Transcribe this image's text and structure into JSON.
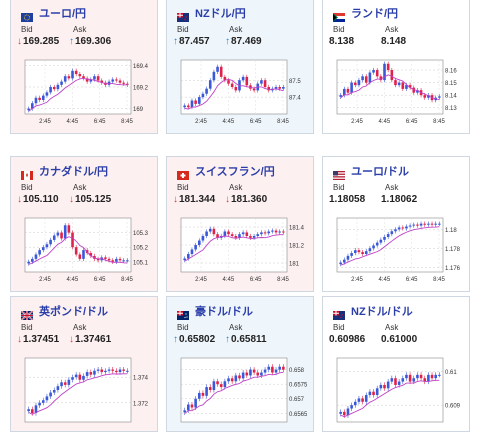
{
  "cards": [
    {
      "title": "ユーロ/円",
      "flag": "eu",
      "tone": "down",
      "bid_label": "Bid",
      "ask_label": "Ask",
      "bid": "169.285",
      "ask": "169.306",
      "bid_dir": "down",
      "ask_dir": "up",
      "yticks": [
        "169.4",
        "169.2",
        "169"
      ],
      "xticks": [
        "2:45",
        "4:45",
        "6:45",
        "8:45"
      ],
      "ylim": [
        168.95,
        169.45
      ],
      "closes": [
        169.0,
        169.05,
        169.1,
        169.08,
        169.12,
        169.15,
        169.2,
        169.18,
        169.22,
        169.25,
        169.3,
        169.28,
        169.35,
        169.32,
        169.3,
        169.28,
        169.25,
        169.27,
        169.3,
        169.26,
        169.24,
        169.22,
        169.25,
        169.27,
        169.26,
        169.24,
        169.23,
        169.22
      ]
    },
    {
      "title": "NZドル/円",
      "flag": "nz",
      "tone": "up",
      "bid_label": "Bid",
      "ask_label": "Ask",
      "bid": "87.457",
      "ask": "87.469",
      "bid_dir": "up",
      "ask_dir": "up",
      "yticks": [
        "87.5",
        "87.4"
      ],
      "xticks": [
        "2:45",
        "4:45",
        "6:45",
        "8:45"
      ],
      "ylim": [
        87.3,
        87.62
      ],
      "closes": [
        87.35,
        87.34,
        87.38,
        87.36,
        87.4,
        87.42,
        87.45,
        87.5,
        87.55,
        87.58,
        87.52,
        87.5,
        87.48,
        87.46,
        87.44,
        87.5,
        87.52,
        87.47,
        87.45,
        87.44,
        87.48,
        87.5,
        87.46,
        87.44,
        87.45,
        87.46,
        87.45,
        87.46
      ]
    },
    {
      "title": "ランド/円",
      "flag": "za",
      "tone": "neutral",
      "bid_label": "Bid",
      "ask_label": "Ask",
      "bid": "8.138",
      "ask": "8.148",
      "bid_dir": "",
      "ask_dir": "",
      "yticks": [
        "8.16",
        "8.15",
        "8.14",
        "8.13"
      ],
      "xticks": [
        "2:45",
        "4:45",
        "6:45",
        "8:45"
      ],
      "ylim": [
        8.125,
        8.168
      ],
      "closes": [
        8.14,
        8.145,
        8.142,
        8.15,
        8.148,
        8.152,
        8.155,
        8.15,
        8.158,
        8.16,
        8.155,
        8.152,
        8.165,
        8.16,
        8.152,
        8.148,
        8.15,
        8.145,
        8.148,
        8.146,
        8.142,
        8.144,
        8.14,
        8.138,
        8.14,
        8.136,
        8.138,
        8.139
      ]
    },
    {
      "title": "カナダドル/円",
      "flag": "ca",
      "tone": "down",
      "bid_label": "Bid",
      "ask_label": "Ask",
      "bid": "105.110",
      "ask": "105.125",
      "bid_dir": "down",
      "ask_dir": "down",
      "yticks": [
        "105.3",
        "105.2",
        "105.1"
      ],
      "xticks": [
        "2:45",
        "4:45",
        "6:45",
        "8:45"
      ],
      "ylim": [
        105.03,
        105.4
      ],
      "closes": [
        105.1,
        105.12,
        105.15,
        105.18,
        105.2,
        105.22,
        105.25,
        105.28,
        105.3,
        105.26,
        105.35,
        105.3,
        105.2,
        105.15,
        105.12,
        105.18,
        105.16,
        105.14,
        105.12,
        105.11,
        105.13,
        105.12,
        105.11,
        105.1,
        105.12,
        105.11,
        105.11,
        105.11
      ]
    },
    {
      "title": "スイスフラン/円",
      "flag": "ch",
      "tone": "down",
      "bid_label": "Bid",
      "ask_label": "Ask",
      "bid": "181.344",
      "ask": "181.360",
      "bid_dir": "down",
      "ask_dir": "down",
      "yticks": [
        "181.4",
        "181.2",
        "181"
      ],
      "xticks": [
        "2:45",
        "4:45",
        "6:45",
        "8:45"
      ],
      "ylim": [
        180.9,
        181.5
      ],
      "closes": [
        181.05,
        181.1,
        181.15,
        181.2,
        181.25,
        181.3,
        181.35,
        181.38,
        181.32,
        181.28,
        181.3,
        181.35,
        181.32,
        181.3,
        181.28,
        181.32,
        181.34,
        181.3,
        181.28,
        181.3,
        181.32,
        181.34,
        181.33,
        181.35,
        181.36,
        181.34,
        181.35,
        181.34
      ]
    },
    {
      "title": "ユーロ/ドル",
      "flag": "us",
      "tone": "neutral",
      "bid_label": "Bid",
      "ask_label": "Ask",
      "bid": "1.18058",
      "ask": "1.18062",
      "bid_dir": "",
      "ask_dir": "",
      "yticks": [
        "1.18",
        "1.178",
        "1.176"
      ],
      "xticks": [
        "2:45",
        "4:45",
        "6:45",
        "8:45"
      ],
      "ylim": [
        1.1755,
        1.1812
      ],
      "closes": [
        1.1765,
        1.1768,
        1.1772,
        1.1775,
        1.1778,
        1.1776,
        1.1774,
        1.1777,
        1.178,
        1.1783,
        1.1786,
        1.1789,
        1.1792,
        1.1795,
        1.1798,
        1.18,
        1.1802,
        1.1801,
        1.1803,
        1.1804,
        1.1805,
        1.1804,
        1.1806,
        1.1805,
        1.1806,
        1.1805,
        1.1806,
        1.1806
      ]
    },
    {
      "title": "英ポンド/ドル",
      "flag": "uk",
      "tone": "down",
      "bid_label": "Bid",
      "ask_label": "Ask",
      "bid": "1.37451",
      "ask": "1.37461",
      "bid_dir": "down",
      "ask_dir": "down",
      "yticks": [
        "1.374",
        "1.372"
      ],
      "xticks": [],
      "ylim": [
        1.3705,
        1.3755
      ],
      "closes": [
        1.3715,
        1.3712,
        1.3718,
        1.372,
        1.3722,
        1.3725,
        1.3728,
        1.373,
        1.3733,
        1.3736,
        1.3734,
        1.3738,
        1.374,
        1.3742,
        1.3738,
        1.3741,
        1.3744,
        1.3742,
        1.3745,
        1.3746,
        1.3744,
        1.3745,
        1.3746,
        1.3745,
        1.3744,
        1.3746,
        1.3745,
        1.3745
      ]
    },
    {
      "title": "豪ドル/ドル",
      "flag": "au",
      "tone": "up",
      "bid_label": "Bid",
      "ask_label": "Ask",
      "bid": "0.65802",
      "ask": "0.65811",
      "bid_dir": "up",
      "ask_dir": "up",
      "yticks": [
        "0.658",
        "0.6575",
        "0.657",
        "0.6565"
      ],
      "xticks": [],
      "ylim": [
        0.6562,
        0.6584
      ],
      "closes": [
        0.6566,
        0.6568,
        0.6567,
        0.657,
        0.6572,
        0.6571,
        0.6574,
        0.6573,
        0.6576,
        0.6575,
        0.6574,
        0.6576,
        0.6577,
        0.6576,
        0.6578,
        0.6577,
        0.6579,
        0.6578,
        0.658,
        0.6579,
        0.6578,
        0.6579,
        0.658,
        0.6581,
        0.6579,
        0.658,
        0.6581,
        0.658
      ]
    },
    {
      "title": "NZドル/ドル",
      "flag": "nz",
      "tone": "neutral",
      "bid_label": "Bid",
      "ask_label": "Ask",
      "bid": "0.60986",
      "ask": "0.61000",
      "bid_dir": "",
      "ask_dir": "",
      "yticks": [
        "0.61",
        "0.609"
      ],
      "xticks": [],
      "ylim": [
        0.6085,
        0.6104
      ],
      "closes": [
        0.6088,
        0.6087,
        0.6089,
        0.609,
        0.6091,
        0.6092,
        0.6091,
        0.6093,
        0.6094,
        0.6093,
        0.6095,
        0.6096,
        0.6095,
        0.6097,
        0.6098,
        0.6096,
        0.6097,
        0.6098,
        0.6099,
        0.6097,
        0.6098,
        0.6099,
        0.6098,
        0.6097,
        0.6099,
        0.6098,
        0.6099,
        0.6099
      ]
    }
  ],
  "colors": {
    "up_candle": "#3a58d8",
    "down_candle": "#e0224a",
    "ma_line": "#c040c8",
    "up_arrow": "#2a7fd6",
    "down_arrow": "#d63a3a",
    "title": "#2b3ea8"
  }
}
